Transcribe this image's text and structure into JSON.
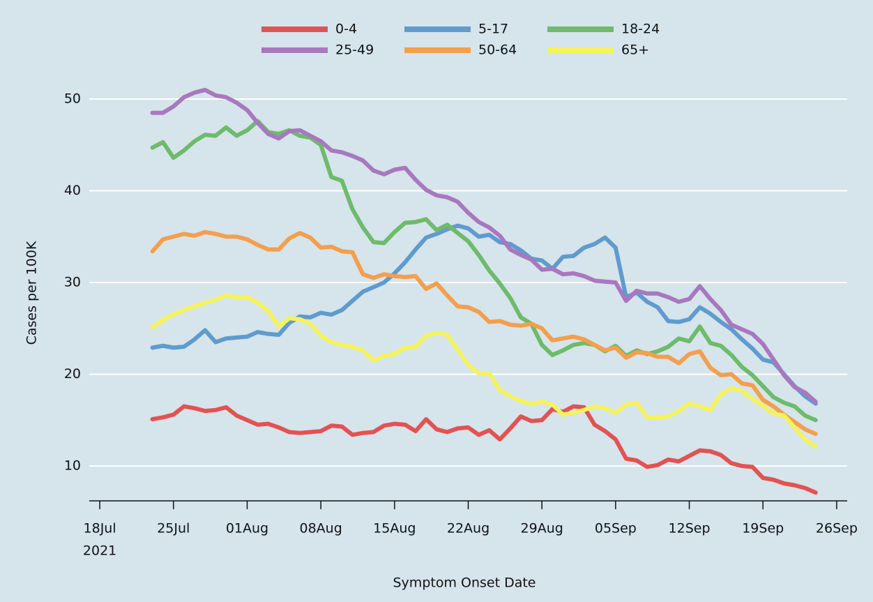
{
  "chart_data": {
    "type": "line",
    "x_label": "Symptom Onset Date",
    "y_label": "Cases per 100K",
    "x": [
      "2021-07-23",
      "2021-07-24",
      "2021-07-25",
      "2021-07-26",
      "2021-07-27",
      "2021-07-28",
      "2021-07-29",
      "2021-07-30",
      "2021-07-31",
      "2021-08-01",
      "2021-08-02",
      "2021-08-03",
      "2021-08-04",
      "2021-08-05",
      "2021-08-06",
      "2021-08-07",
      "2021-08-08",
      "2021-08-09",
      "2021-08-10",
      "2021-08-11",
      "2021-08-12",
      "2021-08-13",
      "2021-08-14",
      "2021-08-15",
      "2021-08-16",
      "2021-08-17",
      "2021-08-18",
      "2021-08-19",
      "2021-08-20",
      "2021-08-21",
      "2021-08-22",
      "2021-08-23",
      "2021-08-24",
      "2021-08-25",
      "2021-08-26",
      "2021-08-27",
      "2021-08-28",
      "2021-08-29",
      "2021-08-30",
      "2021-08-31",
      "2021-09-01",
      "2021-09-02",
      "2021-09-03",
      "2021-09-04",
      "2021-09-05",
      "2021-09-06",
      "2021-09-07",
      "2021-09-08",
      "2021-09-09",
      "2021-09-10",
      "2021-09-11",
      "2021-09-12",
      "2021-09-13",
      "2021-09-14",
      "2021-09-15",
      "2021-09-16",
      "2021-09-17",
      "2021-09-18",
      "2021-09-19",
      "2021-09-20",
      "2021-09-21",
      "2021-09-22",
      "2021-09-23",
      "2021-09-24"
    ],
    "series": [
      {
        "name": "0-4",
        "color": "#e35252",
        "values": [
          15.1,
          15.3,
          15.6,
          16.5,
          16.3,
          16.0,
          16.1,
          16.4,
          15.5,
          15.0,
          14.5,
          14.6,
          14.2,
          13.7,
          13.6,
          13.7,
          13.8,
          14.4,
          14.3,
          13.4,
          13.6,
          13.7,
          14.4,
          14.6,
          14.5,
          13.8,
          15.1,
          14.0,
          13.7,
          14.1,
          14.2,
          13.4,
          13.9,
          12.9,
          14.1,
          15.4,
          14.9,
          15.0,
          16.2,
          15.9,
          16.5,
          16.4,
          14.5,
          13.8,
          12.9,
          10.8,
          10.6,
          9.9,
          10.1,
          10.7,
          10.5,
          11.1,
          11.7,
          11.6,
          11.2,
          10.3,
          10.0,
          9.9,
          8.7,
          8.5,
          8.1,
          7.9,
          7.6,
          7.1
        ]
      },
      {
        "name": "5-17",
        "color": "#5f9bcf",
        "values": [
          22.9,
          23.1,
          22.9,
          23.0,
          23.8,
          24.8,
          23.5,
          23.9,
          24.0,
          24.1,
          24.6,
          24.4,
          24.3,
          25.6,
          26.3,
          26.2,
          26.7,
          26.5,
          27.0,
          28.0,
          29.0,
          29.5,
          30.0,
          31.0,
          32.2,
          33.6,
          34.9,
          35.3,
          35.8,
          36.2,
          35.9,
          35.0,
          35.2,
          34.4,
          34.2,
          33.5,
          32.6,
          32.4,
          31.5,
          32.8,
          32.9,
          33.8,
          34.2,
          34.9,
          33.8,
          28.4,
          28.9,
          27.9,
          27.3,
          25.8,
          25.7,
          26.0,
          27.3,
          26.6,
          25.7,
          24.9,
          23.8,
          22.8,
          21.6,
          21.3,
          20.0,
          18.7,
          17.6,
          16.8
        ]
      },
      {
        "name": "18-24",
        "color": "#6dbb6b",
        "values": [
          44.7,
          45.3,
          43.6,
          44.4,
          45.4,
          46.1,
          46.0,
          46.9,
          46.0,
          46.6,
          47.6,
          46.4,
          46.2,
          46.6,
          46.0,
          45.8,
          45.0,
          41.5,
          41.1,
          38.0,
          36.0,
          34.4,
          34.3,
          35.5,
          36.5,
          36.6,
          36.9,
          35.7,
          36.3,
          35.4,
          34.5,
          33.0,
          31.3,
          29.9,
          28.3,
          26.2,
          25.5,
          23.2,
          22.1,
          22.6,
          23.2,
          23.4,
          23.2,
          22.5,
          23.1,
          22.0,
          22.6,
          22.2,
          22.5,
          23.0,
          23.9,
          23.6,
          25.2,
          23.4,
          23.1,
          22.1,
          20.8,
          19.9,
          18.7,
          17.5,
          16.9,
          16.5,
          15.5,
          15.0
        ]
      },
      {
        "name": "25-49",
        "color": "#a878bf",
        "values": [
          48.5,
          48.5,
          49.2,
          50.2,
          50.7,
          51.0,
          50.4,
          50.2,
          49.6,
          48.8,
          47.4,
          46.2,
          45.7,
          46.5,
          46.6,
          46.0,
          45.4,
          44.4,
          44.2,
          43.8,
          43.3,
          42.2,
          41.8,
          42.3,
          42.5,
          41.2,
          40.1,
          39.5,
          39.3,
          38.8,
          37.6,
          36.6,
          36.0,
          35.1,
          33.6,
          33.0,
          32.5,
          31.4,
          31.5,
          30.9,
          31.0,
          30.7,
          30.2,
          30.1,
          30.0,
          28.0,
          29.1,
          28.8,
          28.8,
          28.4,
          27.9,
          28.2,
          29.6,
          28.2,
          27.0,
          25.4,
          24.9,
          24.4,
          23.3,
          21.6,
          19.9,
          18.6,
          18.0,
          17.0
        ]
      },
      {
        "name": "50-64",
        "color": "#f39f4c",
        "values": [
          33.4,
          34.7,
          35.0,
          35.3,
          35.1,
          35.5,
          35.3,
          35.0,
          35.0,
          34.7,
          34.1,
          33.6,
          33.6,
          34.8,
          35.4,
          34.9,
          33.8,
          33.9,
          33.4,
          33.3,
          30.9,
          30.5,
          30.9,
          30.7,
          30.6,
          30.7,
          29.3,
          29.9,
          28.6,
          27.4,
          27.3,
          26.8,
          25.7,
          25.8,
          25.4,
          25.3,
          25.5,
          25.0,
          23.7,
          23.9,
          24.1,
          23.8,
          23.2,
          22.6,
          22.9,
          21.8,
          22.4,
          22.3,
          21.9,
          21.9,
          21.2,
          22.2,
          22.5,
          20.7,
          19.9,
          20.0,
          19.0,
          18.8,
          17.2,
          16.5,
          15.6,
          14.8,
          14.0,
          13.5
        ]
      },
      {
        "name": "65+",
        "color": "#f4f35c",
        "values": [
          25.1,
          25.9,
          26.5,
          27.0,
          27.4,
          27.8,
          28.1,
          28.6,
          28.4,
          28.4,
          27.8,
          26.9,
          25.2,
          26.1,
          26.0,
          25.5,
          24.2,
          23.5,
          23.2,
          23.0,
          22.6,
          21.5,
          22.0,
          22.2,
          22.9,
          23.0,
          24.2,
          24.5,
          24.3,
          22.7,
          21.0,
          20.1,
          20.1,
          18.3,
          17.6,
          17.1,
          16.8,
          17.0,
          16.7,
          15.6,
          15.8,
          16.1,
          16.5,
          16.3,
          15.8,
          16.7,
          16.9,
          15.3,
          15.3,
          15.4,
          16.0,
          16.8,
          16.5,
          16.1,
          17.8,
          18.5,
          18.2,
          17.3,
          16.6,
          15.7,
          15.5,
          14.2,
          12.9,
          12.1
        ]
      }
    ],
    "xlim": [
      "2021-07-17",
      "2021-09-27"
    ],
    "xticks": [
      {
        "value": "2021-07-18",
        "label": "18Jul"
      },
      {
        "value": "2021-07-25",
        "label": "25Jul"
      },
      {
        "value": "2021-08-01",
        "label": "01Aug"
      },
      {
        "value": "2021-08-08",
        "label": "08Aug"
      },
      {
        "value": "2021-08-15",
        "label": "15Aug"
      },
      {
        "value": "2021-08-22",
        "label": "22Aug"
      },
      {
        "value": "2021-08-29",
        "label": "29Aug"
      },
      {
        "value": "2021-09-05",
        "label": "05Sep"
      },
      {
        "value": "2021-09-12",
        "label": "12Sep"
      },
      {
        "value": "2021-09-19",
        "label": "19Sep"
      },
      {
        "value": "2021-09-26",
        "label": "26Sep"
      }
    ],
    "x_year_label": "2021",
    "ylim": [
      6.2,
      54
    ],
    "yticks": [
      10,
      20,
      30,
      40,
      50
    ],
    "grid": true,
    "legend": "top"
  }
}
